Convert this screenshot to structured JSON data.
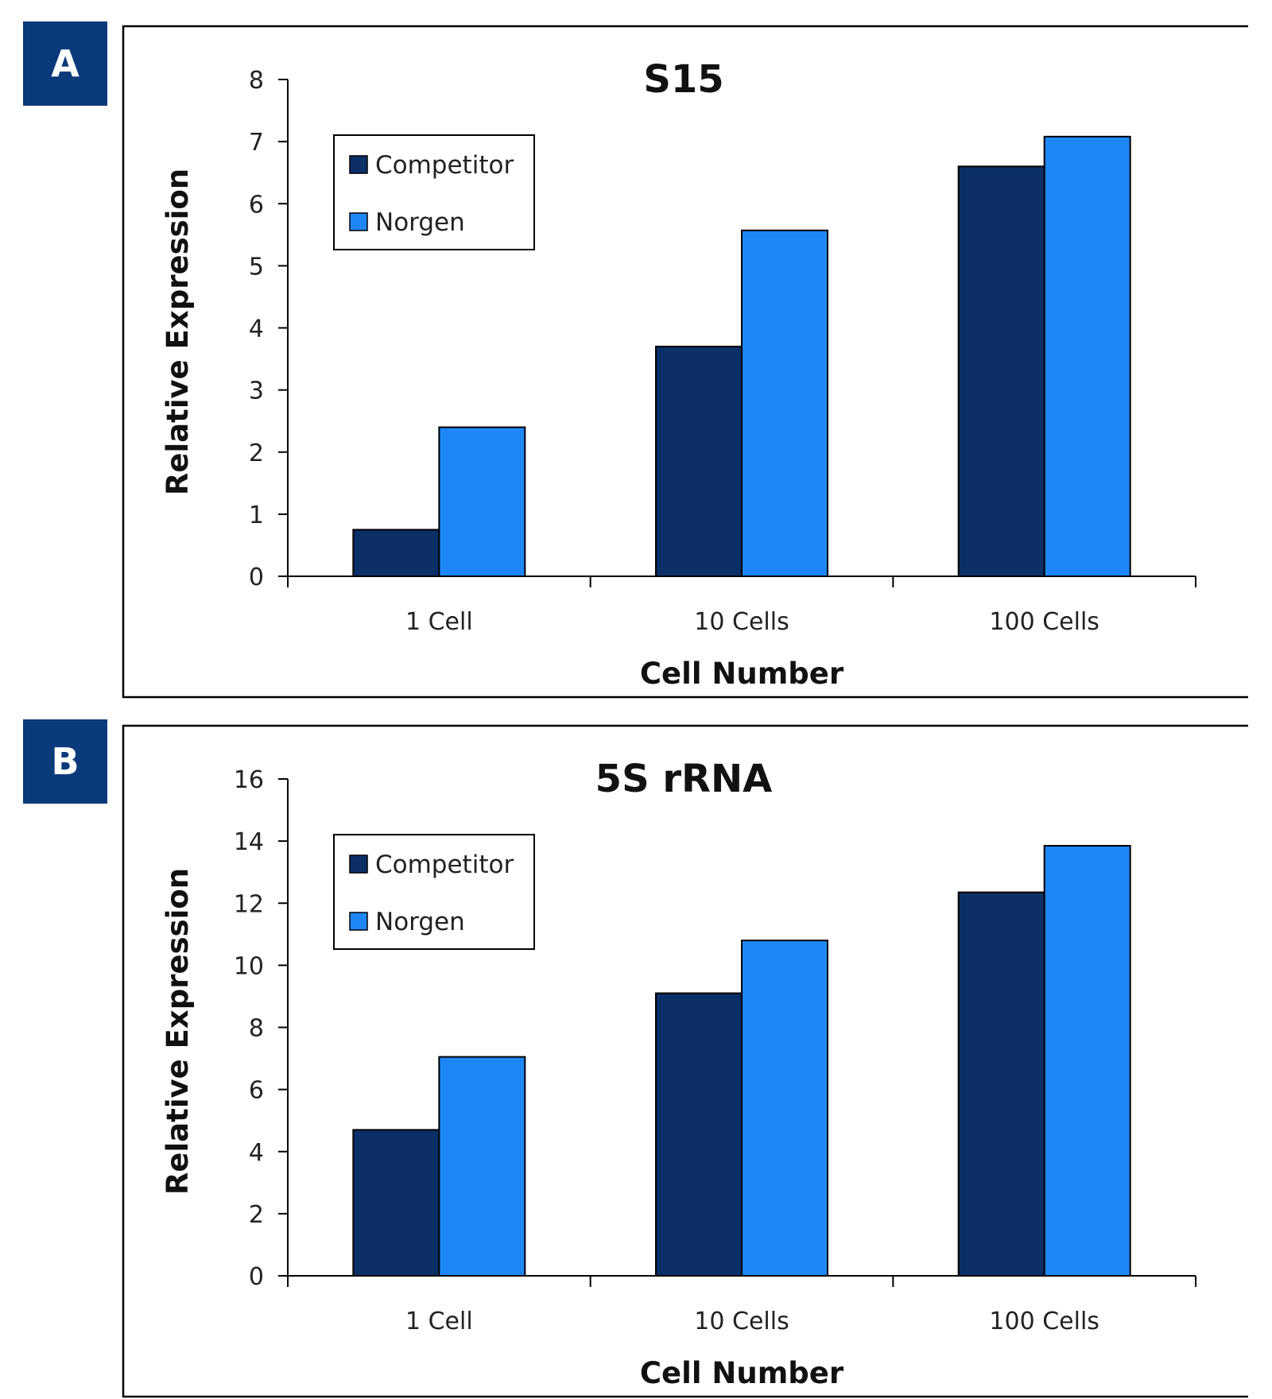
{
  "chart_data": [
    {
      "panel": "A",
      "type": "bar",
      "title": "S15",
      "xlabel": "Cell Number",
      "ylabel": "Relative Expression",
      "categories": [
        "1 Cell",
        "10 Cells",
        "100 Cells"
      ],
      "ylim": [
        0,
        8
      ],
      "yticks": [
        0,
        1,
        2,
        3,
        4,
        5,
        6,
        7,
        8
      ],
      "legend_position": "top-left",
      "series": [
        {
          "name": "Competitor",
          "color": "#0b3068",
          "values": [
            0.75,
            3.7,
            6.6
          ]
        },
        {
          "name": "Norgen",
          "color": "#1f86f7",
          "values": [
            2.4,
            5.57,
            7.08
          ]
        }
      ]
    },
    {
      "panel": "B",
      "type": "bar",
      "title": "5S rRNA",
      "xlabel": "Cell Number",
      "ylabel": "Relative Expression",
      "categories": [
        "1 Cell",
        "10 Cells",
        "100 Cells"
      ],
      "ylim": [
        0,
        16
      ],
      "yticks": [
        0,
        2,
        4,
        6,
        8,
        10,
        12,
        14,
        16
      ],
      "legend_position": "top-left",
      "series": [
        {
          "name": "Competitor",
          "color": "#0b3068",
          "values": [
            4.7,
            9.1,
            12.35
          ]
        },
        {
          "name": "Norgen",
          "color": "#1f86f7",
          "values": [
            7.05,
            10.8,
            13.85
          ]
        }
      ]
    }
  ]
}
